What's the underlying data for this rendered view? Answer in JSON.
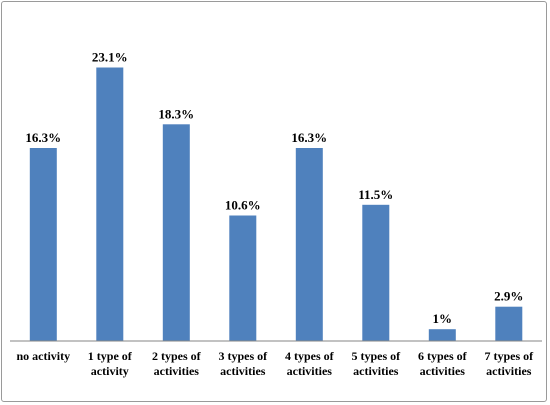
{
  "chart_data": {
    "type": "bar",
    "title": "",
    "xlabel": "",
    "ylabel": "",
    "categories": [
      [
        "no activity"
      ],
      [
        "1 type of",
        "activity"
      ],
      [
        "2 types of",
        "activities"
      ],
      [
        "3 types of",
        "activities"
      ],
      [
        "4 types of",
        "activities"
      ],
      [
        "5 types of",
        "activities"
      ],
      [
        "6 types of",
        "activities"
      ],
      [
        "7 types of",
        "activities"
      ]
    ],
    "values": [
      16.3,
      23.1,
      18.3,
      10.6,
      16.3,
      11.5,
      1,
      2.9
    ],
    "data_labels": [
      "16.3%",
      "23.1%",
      "18.3%",
      "10.6%",
      "16.3%",
      "11.5%",
      "1%",
      "2.9%"
    ],
    "ylim": [
      0,
      25
    ],
    "grid": false,
    "legend": "none",
    "bar_color": "#4f81bd",
    "axis_color": "#868686"
  }
}
